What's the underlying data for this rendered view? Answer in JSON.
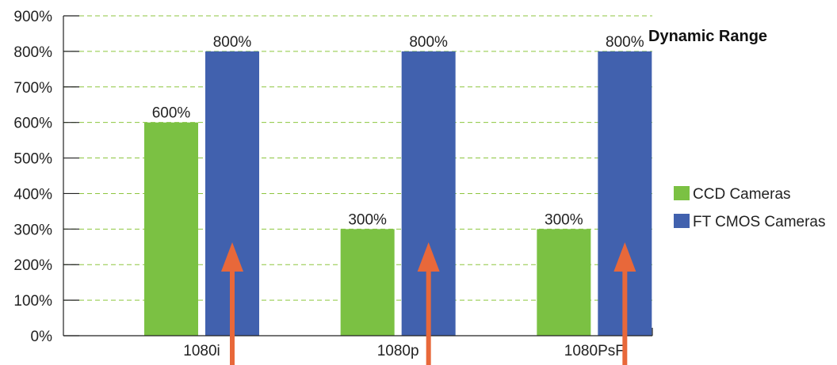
{
  "chart_data": {
    "type": "bar",
    "title": "Dynamic Range",
    "categories": [
      "1080i",
      "1080p",
      "1080PsF"
    ],
    "series": [
      {
        "name": "CCD Cameras",
        "values": [
          600,
          300,
          300
        ],
        "labels": [
          "600%",
          "300%",
          "300%"
        ],
        "color": "#7bc143"
      },
      {
        "name": "FT CMOS Cameras",
        "values": [
          800,
          800,
          800
        ],
        "labels": [
          "800%",
          "800%",
          "800%"
        ],
        "color": "#4161ae"
      }
    ],
    "ylim": [
      0,
      900
    ],
    "yticks": [
      0,
      100,
      200,
      300,
      400,
      500,
      600,
      700,
      800,
      900
    ],
    "ytick_labels": [
      "0%",
      "100%",
      "200%",
      "300%",
      "400%",
      "500%",
      "600%",
      "700%",
      "800%",
      "900%"
    ],
    "xlabel": "",
    "ylabel": "",
    "grid": true,
    "grid_color": "#8dc63f",
    "legend_position": "right",
    "annotations": {
      "arrows": {
        "count": 3,
        "color": "#e8683a",
        "description_target": "FT CMOS Cameras bars"
      }
    }
  }
}
